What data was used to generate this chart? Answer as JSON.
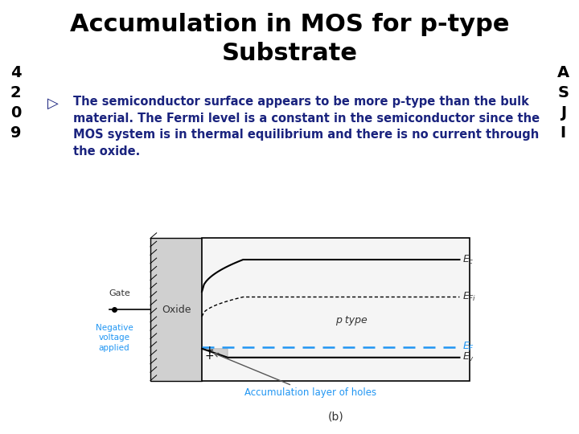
{
  "title": "Accumulation in MOS for p-type\nSubstrate",
  "title_color": "#000000",
  "title_bg": "#22aa22",
  "left_bar_color": "#f5c518",
  "left_bar_text": "4\n2\n0\n9",
  "right_bar_color": "#f5c518",
  "right_bar_text": "A\nS\nJ\nI",
  "body_bg": "#ffffff",
  "bullet_text": "The semiconductor surface appears to be more p-type than the bulk\nmaterial. The Fermi level is a constant in the semiconductor since the\nMOS system is in thermal equilibrium and there is no current through\nthe oxide.",
  "bullet_color": "#1a237e",
  "diagram_caption": "(b)",
  "accumulation_label": "Accumulation layer of holes",
  "gate_label": "Gate",
  "oxide_label": "Oxide",
  "negative_label": "Negative\nvoltage\napplied",
  "ptype_label": "p type"
}
